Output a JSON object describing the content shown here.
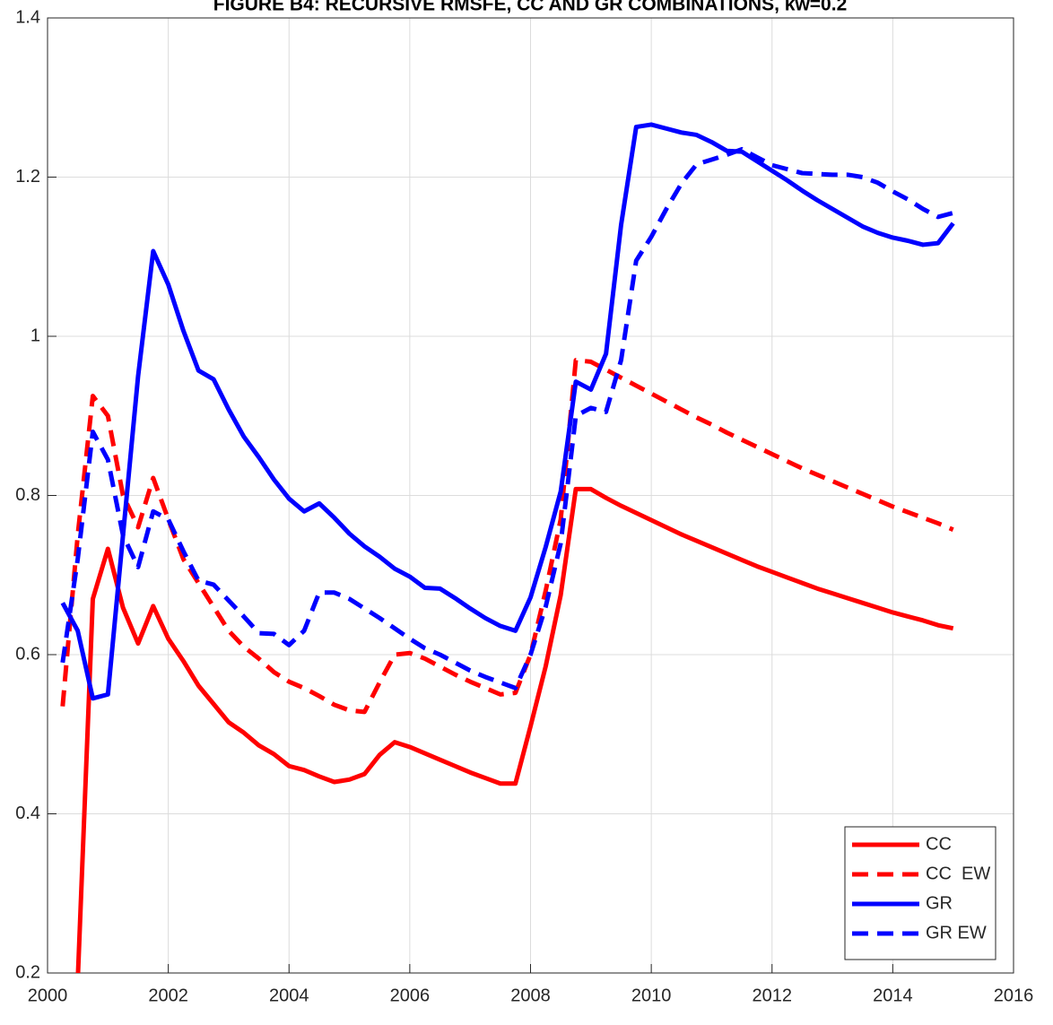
{
  "chart_data": {
    "type": "line",
    "title": "FIGURE B4: RECURSIVE RMSFE, CC AND GR COMBINATIONS, kw=0.2",
    "x": [
      2000.25,
      2000.5,
      2000.75,
      2001,
      2001.25,
      2001.5,
      2001.75,
      2002,
      2002.25,
      2002.5,
      2002.75,
      2003,
      2003.25,
      2003.5,
      2003.75,
      2004,
      2004.25,
      2004.5,
      2004.75,
      2005,
      2005.25,
      2005.5,
      2005.75,
      2006,
      2006.25,
      2006.5,
      2006.75,
      2007,
      2007.25,
      2007.5,
      2007.75,
      2008,
      2008.25,
      2008.5,
      2008.75,
      2009,
      2009.25,
      2009.5,
      2009.75,
      2010,
      2010.25,
      2010.5,
      2010.75,
      2011,
      2011.25,
      2011.5,
      2011.75,
      2012,
      2012.25,
      2012.5,
      2012.75,
      2013,
      2013.25,
      2013.5,
      2013.75,
      2014,
      2014.25,
      2014.5,
      2014.75,
      2015
    ],
    "series": [
      {
        "name": "CC",
        "color": "#ff0000",
        "dash": false,
        "values": [
          null,
          0.19,
          0.67,
          0.733,
          0.659,
          0.614,
          0.661,
          0.62,
          0.592,
          0.561,
          0.538,
          0.515,
          0.502,
          0.486,
          0.475,
          0.46,
          0.455,
          0.447,
          0.44,
          0.443,
          0.45,
          0.474,
          0.49,
          0.484,
          0.476,
          0.468,
          0.46,
          0.452,
          0.445,
          0.438,
          0.438,
          0.51,
          0.585,
          0.675,
          0.808,
          0.808,
          0.797,
          0.787,
          0.778,
          0.769,
          0.76,
          0.751,
          0.743,
          0.735,
          0.727,
          0.719,
          0.711,
          0.704,
          0.697,
          0.69,
          0.683,
          0.677,
          0.671,
          0.665,
          0.659,
          0.653,
          0.648,
          0.643,
          0.637,
          0.633
        ]
      },
      {
        "name": "CC  EW",
        "color": "#ff0000",
        "dash": true,
        "values": [
          0.535,
          0.75,
          0.925,
          0.9,
          0.8,
          0.76,
          0.822,
          0.77,
          0.72,
          0.69,
          0.66,
          0.63,
          0.61,
          0.595,
          0.578,
          0.566,
          0.558,
          0.548,
          0.537,
          0.53,
          0.528,
          0.565,
          0.6,
          0.602,
          0.595,
          0.585,
          0.575,
          0.566,
          0.558,
          0.55,
          0.552,
          0.6,
          0.68,
          0.77,
          0.97,
          0.968,
          0.958,
          0.948,
          0.938,
          0.928,
          0.918,
          0.908,
          0.898,
          0.889,
          0.879,
          0.87,
          0.861,
          0.852,
          0.843,
          0.834,
          0.826,
          0.818,
          0.81,
          0.802,
          0.794,
          0.786,
          0.779,
          0.772,
          0.765,
          0.757
        ]
      },
      {
        "name": "GR",
        "color": "#0000ff",
        "dash": false,
        "values": [
          0.665,
          0.63,
          0.545,
          0.55,
          0.75,
          0.95,
          1.107,
          1.065,
          1.007,
          0.957,
          0.946,
          0.908,
          0.874,
          0.848,
          0.82,
          0.796,
          0.78,
          0.79,
          0.772,
          0.752,
          0.736,
          0.723,
          0.708,
          0.698,
          0.684,
          0.683,
          0.671,
          0.658,
          0.646,
          0.636,
          0.63,
          0.672,
          0.735,
          0.805,
          0.943,
          0.933,
          0.978,
          1.14,
          1.263,
          1.266,
          1.261,
          1.256,
          1.253,
          1.244,
          1.233,
          1.232,
          1.22,
          1.208,
          1.196,
          1.183,
          1.171,
          1.16,
          1.149,
          1.138,
          1.13,
          1.124,
          1.12,
          1.115,
          1.117,
          1.142
        ]
      },
      {
        "name": "GR EW",
        "color": "#0000ff",
        "dash": true,
        "values": [
          0.59,
          0.72,
          0.88,
          0.845,
          0.75,
          0.71,
          0.78,
          0.77,
          0.73,
          0.693,
          0.688,
          0.668,
          0.648,
          0.627,
          0.626,
          0.612,
          0.63,
          0.678,
          0.678,
          0.67,
          0.658,
          0.646,
          0.633,
          0.62,
          0.608,
          0.6,
          0.59,
          0.58,
          0.572,
          0.565,
          0.558,
          0.6,
          0.66,
          0.74,
          0.9,
          0.91,
          0.905,
          0.97,
          1.095,
          1.125,
          1.16,
          1.192,
          1.216,
          1.222,
          1.228,
          1.235,
          1.225,
          1.215,
          1.21,
          1.205,
          1.204,
          1.203,
          1.203,
          1.2,
          1.193,
          1.182,
          1.172,
          1.16,
          1.15,
          1.155
        ]
      }
    ],
    "xlim": [
      2000,
      2016
    ],
    "xticks": [
      2000,
      2002,
      2004,
      2006,
      2008,
      2010,
      2012,
      2014,
      2016
    ],
    "ylim": [
      0.2,
      1.4
    ],
    "yticks": [
      0.2,
      0.4,
      0.6,
      0.8,
      1,
      1.2,
      1.4
    ],
    "grid": true,
    "legend": "lower right"
  }
}
